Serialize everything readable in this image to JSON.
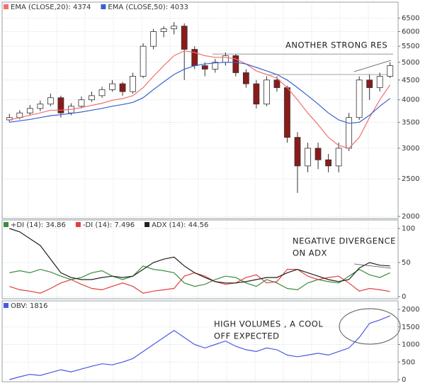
{
  "chart_data": [
    {
      "type": "candlestick",
      "log_scale": true,
      "grid": true,
      "ylim": [
        1975,
        7000
      ],
      "yticks": [
        2000,
        2500,
        3000,
        3500,
        4000,
        4500,
        5000,
        5500,
        6000,
        6500
      ],
      "annotation": "ANOTHER STRONG RES",
      "resistance_levels": [
        5250,
        4650
      ],
      "open": [
        3550,
        3600,
        3700,
        3800,
        3900,
        4050,
        3700,
        3850,
        4000,
        4100,
        4250,
        4400,
        4200,
        4600,
        5500,
        6000,
        6100,
        6200,
        5400,
        4900,
        4800,
        5000,
        5200,
        4700,
        4400,
        3900,
        4500,
        4300,
        3200,
        2700,
        3000,
        2800,
        2700,
        3000,
        3600,
        4500,
        4300,
        4600
      ],
      "high": [
        3680,
        3760,
        3880,
        3980,
        4150,
        4100,
        3920,
        4080,
        4200,
        4320,
        4500,
        4450,
        4700,
        5600,
        6100,
        6200,
        6350,
        6300,
        5500,
        5000,
        5100,
        5300,
        5250,
        4800,
        4500,
        4600,
        4600,
        4350,
        3300,
        3100,
        3100,
        2900,
        3100,
        3700,
        4600,
        4650,
        4700,
        5000
      ],
      "low": [
        3500,
        3560,
        3650,
        3740,
        3850,
        3600,
        3650,
        3800,
        3950,
        4050,
        4200,
        4100,
        4150,
        4550,
        5400,
        5800,
        5900,
        4500,
        4800,
        4600,
        4700,
        4900,
        4600,
        4300,
        3800,
        3850,
        4200,
        3100,
        2300,
        2600,
        2650,
        2600,
        2600,
        2950,
        3550,
        4000,
        4200,
        4550
      ],
      "close": [
        3600,
        3700,
        3800,
        3900,
        4050,
        3700,
        3850,
        4000,
        4100,
        4250,
        4400,
        4200,
        4600,
        5500,
        6000,
        6100,
        6200,
        5400,
        4900,
        4800,
        5000,
        5200,
        4700,
        4400,
        3900,
        4500,
        4300,
        3200,
        2700,
        3000,
        2800,
        2700,
        3000,
        3600,
        4500,
        4300,
        4600,
        4900
      ],
      "up_color": "#ffffff",
      "down_color": "#8b1a1a",
      "series": [
        {
          "name": "EMA (CLOSE,20): 4374",
          "color": "#f07070",
          "values": [
            3550,
            3600,
            3650,
            3700,
            3760,
            3760,
            3780,
            3820,
            3870,
            3920,
            3990,
            4030,
            4100,
            4300,
            4600,
            4900,
            5200,
            5350,
            5300,
            5200,
            5150,
            5150,
            5100,
            4950,
            4750,
            4650,
            4550,
            4300,
            4000,
            3700,
            3450,
            3200,
            3050,
            3000,
            3200,
            3600,
            4000,
            4374
          ]
        },
        {
          "name": "EMA (CLOSE,50): 4033",
          "color": "#3a5fd0",
          "values": [
            3500,
            3530,
            3560,
            3600,
            3640,
            3660,
            3690,
            3720,
            3760,
            3800,
            3850,
            3890,
            3940,
            4050,
            4250,
            4450,
            4650,
            4800,
            4900,
            4950,
            4980,
            5000,
            5000,
            4950,
            4850,
            4750,
            4650,
            4500,
            4300,
            4100,
            3900,
            3700,
            3550,
            3480,
            3500,
            3650,
            3850,
            4033
          ]
        }
      ]
    },
    {
      "type": "line",
      "grid": true,
      "ylim": [
        0,
        100
      ],
      "yticks": [
        0,
        50,
        100
      ],
      "annotation": [
        "NEGATIVE DIVERGENCE",
        "ON ADX"
      ],
      "series": [
        {
          "name": "+DI (14): 34.86",
          "color": "#3c8c3c",
          "values": [
            35,
            38,
            35,
            40,
            36,
            30,
            25,
            28,
            35,
            38,
            30,
            25,
            30,
            45,
            40,
            38,
            35,
            20,
            15,
            18,
            25,
            30,
            28,
            20,
            15,
            25,
            20,
            12,
            10,
            20,
            25,
            22,
            20,
            30,
            40,
            32,
            28,
            35
          ]
        },
        {
          "name": "-DI (14): 7.496",
          "color": "#e04040",
          "values": [
            15,
            10,
            8,
            5,
            12,
            20,
            25,
            18,
            12,
            10,
            15,
            20,
            15,
            5,
            8,
            10,
            12,
            30,
            35,
            30,
            22,
            18,
            20,
            28,
            32,
            20,
            22,
            40,
            40,
            30,
            25,
            28,
            30,
            20,
            8,
            12,
            10,
            7.5
          ]
        },
        {
          "name": "ADX (14): 44.56",
          "color": "#222222",
          "values": [
            100,
            95,
            85,
            75,
            55,
            35,
            28,
            25,
            25,
            28,
            30,
            28,
            30,
            40,
            50,
            55,
            58,
            45,
            35,
            28,
            22,
            20,
            20,
            22,
            25,
            28,
            28,
            35,
            40,
            35,
            30,
            25,
            22,
            25,
            42,
            50,
            46,
            45
          ]
        }
      ]
    },
    {
      "type": "line",
      "grid": true,
      "ylim": [
        0,
        2000
      ],
      "yticks": [
        0,
        500,
        1000,
        1500,
        2000
      ],
      "annotation": [
        "HIGH VOLUMES , A COOL",
        "OFF EXPECTED"
      ],
      "series": [
        {
          "name": "OBV: 1816",
          "color": "#4a5ae0",
          "values": [
            0,
            80,
            150,
            120,
            200,
            280,
            220,
            300,
            380,
            450,
            420,
            500,
            600,
            800,
            1000,
            1200,
            1400,
            1200,
            1000,
            900,
            1000,
            1100,
            950,
            850,
            800,
            900,
            850,
            700,
            650,
            700,
            750,
            700,
            800,
            900,
            1200,
            1600,
            1700,
            1816
          ]
        }
      ]
    }
  ]
}
